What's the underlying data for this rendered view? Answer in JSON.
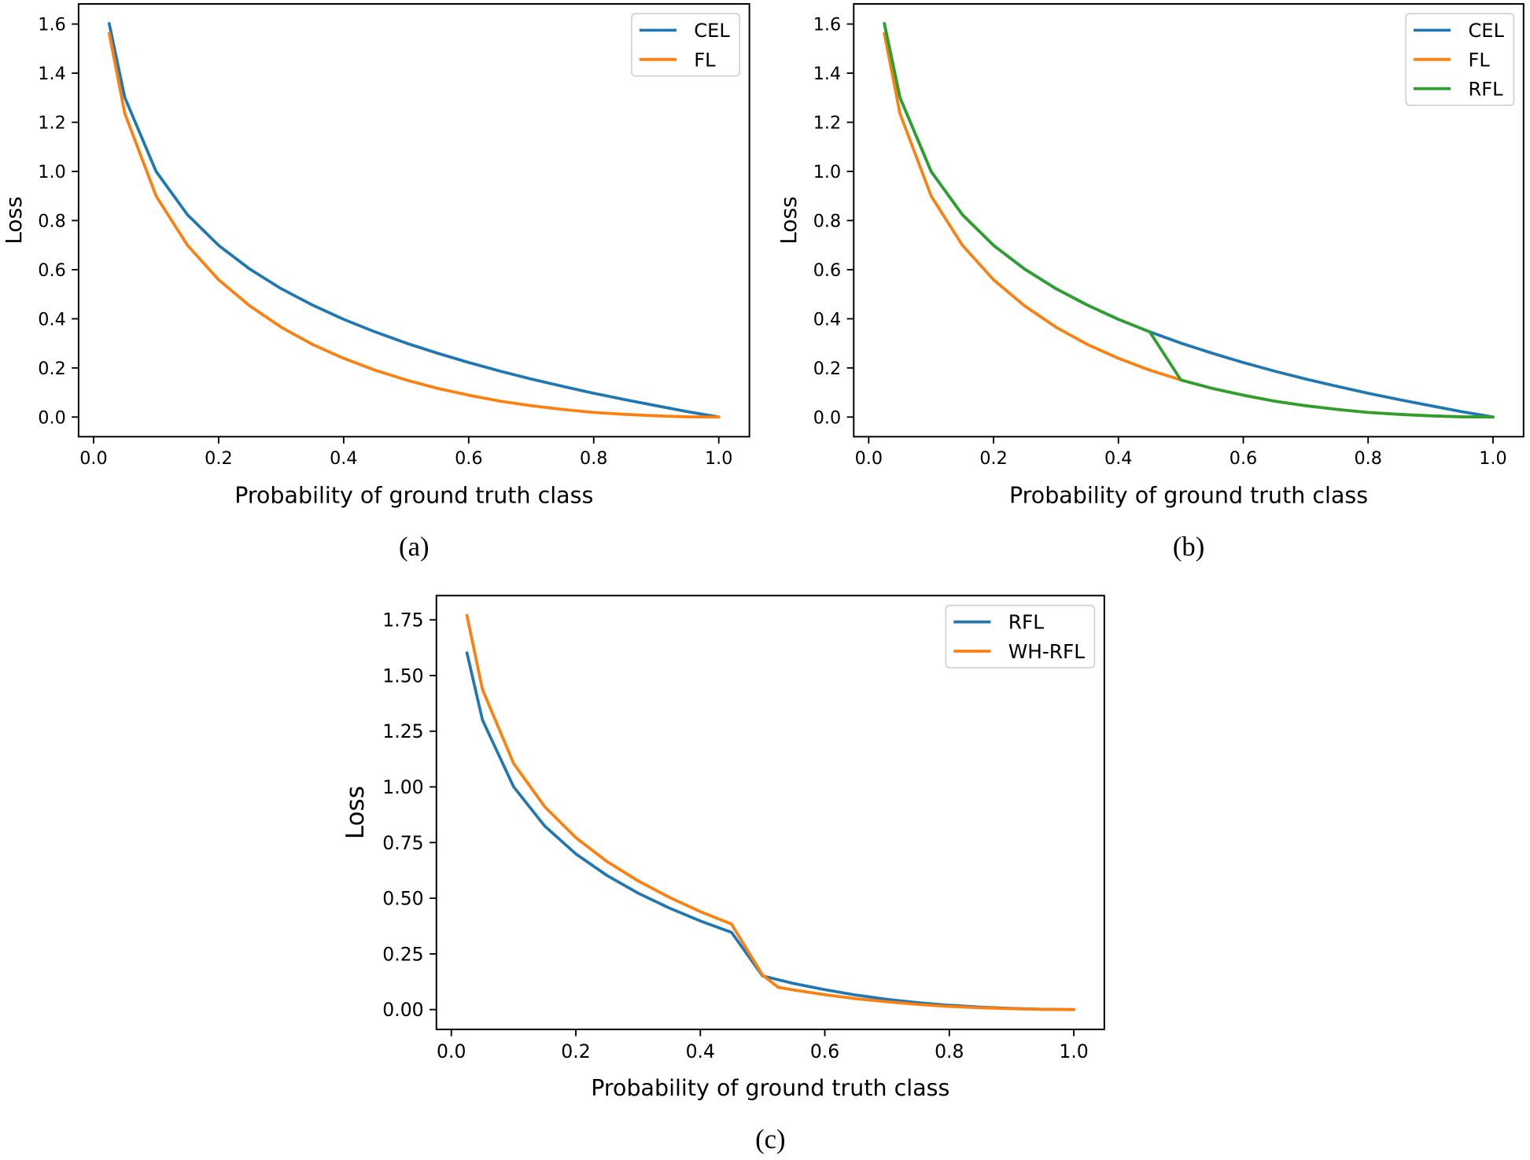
{
  "chart_data": [
    {
      "type": "line",
      "caption": "(a)",
      "xlabel": "Probability of ground truth class",
      "ylabel": "Loss",
      "xlim": [
        -0.024,
        1.049
      ],
      "ylim": [
        -0.08,
        1.682
      ],
      "xticks": [
        0,
        0.2,
        0.4,
        0.6,
        0.8,
        1.0
      ],
      "xtick_labels": [
        "0.0",
        "0.2",
        "0.4",
        "0.6",
        "0.8",
        "1.0"
      ],
      "yticks": [
        0,
        0.2,
        0.4,
        0.6,
        0.8,
        1.0,
        1.2,
        1.4,
        1.6
      ],
      "ytick_labels": [
        "0.0",
        "0.2",
        "0.4",
        "0.6",
        "0.8",
        "1.0",
        "1.2",
        "1.4",
        "1.6"
      ],
      "grid": false,
      "legend": "upper right",
      "x": [
        0.025,
        0.05,
        0.1,
        0.15,
        0.2,
        0.25,
        0.3,
        0.35,
        0.4,
        0.45,
        0.5,
        0.55,
        0.6,
        0.65,
        0.7,
        0.75,
        0.8,
        0.85,
        0.9,
        0.95,
        1.0
      ],
      "series": [
        {
          "name": "CEL",
          "color": "#1f77b4",
          "y": [
            1.602,
            1.301,
            1.0,
            0.824,
            0.699,
            0.602,
            0.523,
            0.456,
            0.398,
            0.347,
            0.301,
            0.26,
            0.222,
            0.187,
            0.155,
            0.125,
            0.097,
            0.071,
            0.046,
            0.022,
            0.0
          ]
        },
        {
          "name": "FL",
          "color": "#ff7f0e",
          "y": [
            1.562,
            1.236,
            0.9,
            0.7,
            0.559,
            0.452,
            0.366,
            0.296,
            0.239,
            0.191,
            0.151,
            0.117,
            0.089,
            0.065,
            0.046,
            0.031,
            0.019,
            0.011,
            0.005,
            0.001,
            0.0
          ]
        }
      ]
    },
    {
      "type": "line",
      "caption": "(b)",
      "xlabel": "Probability of ground truth class",
      "ylabel": "Loss",
      "xlim": [
        -0.024,
        1.049
      ],
      "ylim": [
        -0.08,
        1.682
      ],
      "xticks": [
        0,
        0.2,
        0.4,
        0.6,
        0.8,
        1.0
      ],
      "xtick_labels": [
        "0.0",
        "0.2",
        "0.4",
        "0.6",
        "0.8",
        "1.0"
      ],
      "yticks": [
        0,
        0.2,
        0.4,
        0.6,
        0.8,
        1.0,
        1.2,
        1.4,
        1.6
      ],
      "ytick_labels": [
        "0.0",
        "0.2",
        "0.4",
        "0.6",
        "0.8",
        "1.0",
        "1.2",
        "1.4",
        "1.6"
      ],
      "grid": false,
      "legend": "upper right",
      "x": [
        0.025,
        0.05,
        0.1,
        0.15,
        0.2,
        0.25,
        0.3,
        0.35,
        0.4,
        0.45,
        0.5,
        0.55,
        0.6,
        0.65,
        0.7,
        0.75,
        0.8,
        0.85,
        0.9,
        0.95,
        1.0
      ],
      "series": [
        {
          "name": "CEL",
          "color": "#1f77b4",
          "y": [
            1.602,
            1.301,
            1.0,
            0.824,
            0.699,
            0.602,
            0.523,
            0.456,
            0.398,
            0.347,
            0.301,
            0.26,
            0.222,
            0.187,
            0.155,
            0.125,
            0.097,
            0.071,
            0.046,
            0.022,
            0.0
          ]
        },
        {
          "name": "FL",
          "color": "#ff7f0e",
          "y": [
            1.562,
            1.236,
            0.9,
            0.7,
            0.559,
            0.452,
            0.366,
            0.296,
            0.239,
            0.191,
            0.151,
            0.117,
            0.089,
            0.065,
            0.046,
            0.031,
            0.019,
            0.011,
            0.005,
            0.001,
            0.0
          ]
        },
        {
          "name": "RFL",
          "color": "#2ca02c",
          "y": [
            1.602,
            1.301,
            1.0,
            0.824,
            0.699,
            0.602,
            0.523,
            0.456,
            0.398,
            0.347,
            0.151,
            0.117,
            0.089,
            0.065,
            0.046,
            0.031,
            0.019,
            0.011,
            0.005,
            0.001,
            0.0
          ]
        }
      ]
    },
    {
      "type": "line",
      "caption": "(c)",
      "xlabel": "Probability of ground truth class",
      "ylabel": "Loss",
      "xlim": [
        -0.024,
        1.049
      ],
      "ylim": [
        -0.089,
        1.859
      ],
      "xticks": [
        0,
        0.2,
        0.4,
        0.6,
        0.8,
        1.0
      ],
      "xtick_labels": [
        "0.0",
        "0.2",
        "0.4",
        "0.6",
        "0.8",
        "1.0"
      ],
      "yticks": [
        0,
        0.25,
        0.5,
        0.75,
        1.0,
        1.25,
        1.5,
        1.75
      ],
      "ytick_labels": [
        "0.00",
        "0.25",
        "0.50",
        "0.75",
        "1.00",
        "1.25",
        "1.50",
        "1.75"
      ],
      "grid": false,
      "legend": "upper right",
      "x": [
        0.025,
        0.05,
        0.1,
        0.15,
        0.2,
        0.25,
        0.3,
        0.35,
        0.4,
        0.45,
        0.5,
        0.55,
        0.6,
        0.65,
        0.7,
        0.75,
        0.8,
        0.85,
        0.9,
        0.95,
        1.0
      ],
      "series": [
        {
          "name": "RFL",
          "color": "#1f77b4",
          "y": [
            1.602,
            1.301,
            1.0,
            0.824,
            0.699,
            0.602,
            0.523,
            0.456,
            0.398,
            0.347,
            0.151,
            0.117,
            0.089,
            0.065,
            0.046,
            0.031,
            0.019,
            0.011,
            0.005,
            0.001,
            0.0
          ]
        },
        {
          "name": "WH-RFL",
          "color": "#ff7f0e",
          "x": [
            0.025,
            0.05,
            0.1,
            0.15,
            0.2,
            0.25,
            0.3,
            0.35,
            0.4,
            0.45,
            0.5,
            0.525,
            0.55,
            0.6,
            0.65,
            0.7,
            0.75,
            0.8,
            0.85,
            0.9,
            0.95,
            1.0
          ],
          "y": [
            1.77,
            1.438,
            1.105,
            0.911,
            0.772,
            0.665,
            0.578,
            0.504,
            0.44,
            0.384,
            0.155,
            0.1,
            0.088,
            0.067,
            0.049,
            0.035,
            0.023,
            0.014,
            0.008,
            0.004,
            0.001,
            0.0
          ]
        }
      ]
    }
  ]
}
